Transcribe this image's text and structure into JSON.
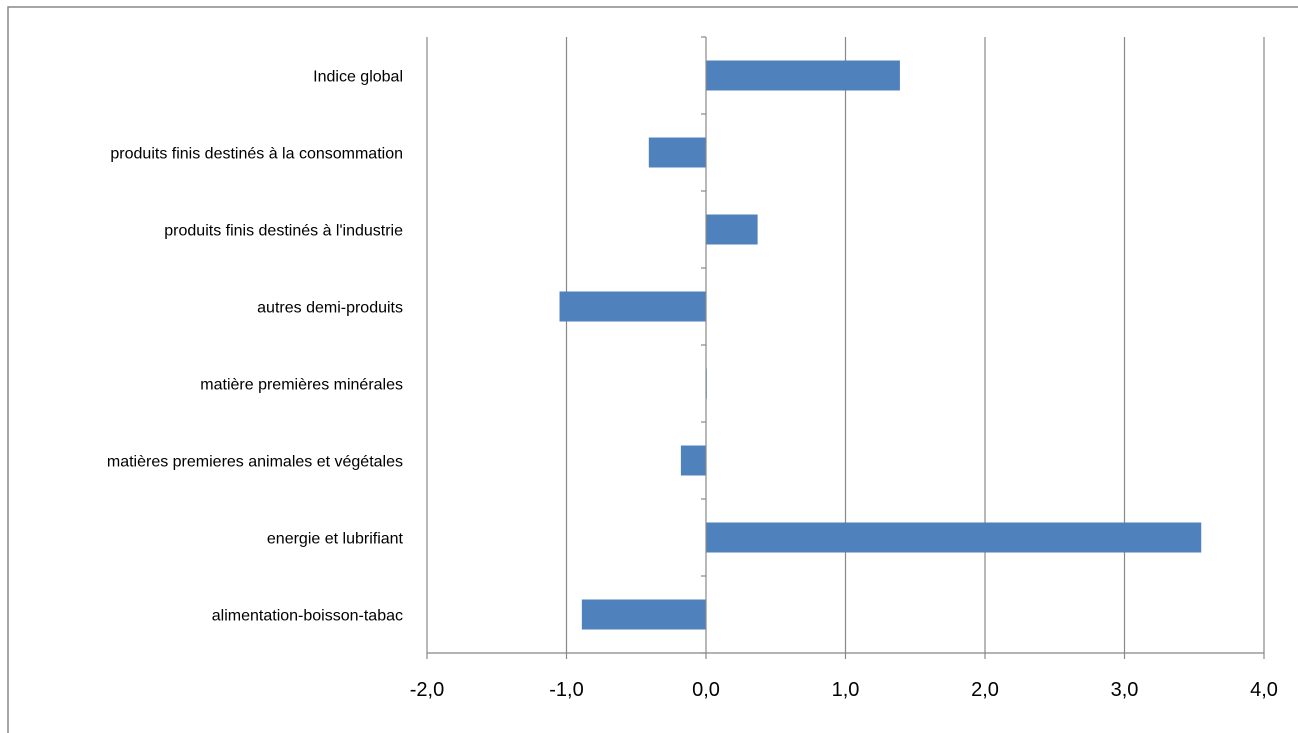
{
  "chart_data": {
    "type": "bar",
    "orientation": "horizontal",
    "title": "",
    "xlabel": "",
    "ylabel": "",
    "categories": [
      "alimentation-boisson-tabac",
      "energie et lubrifiant",
      "matières premieres animales et végétales",
      "matière premières minérales",
      "autres demi-produits",
      "produits finis destinés à l'industrie",
      "produits finis destinés à la consommation",
      "Indice global"
    ],
    "values": [
      -0.89,
      3.55,
      -0.18,
      0.0,
      -1.05,
      0.37,
      -0.41,
      1.39
    ],
    "xlim": [
      -2.0,
      4.0
    ],
    "x_ticks": [
      "-2,0",
      "-1,0",
      "0,0",
      "1,0",
      "2,0",
      "3,0",
      "4,0"
    ],
    "grid": "vertical",
    "legend": "none",
    "colors": {
      "bar": "#4F81BD",
      "grid": "#888888",
      "axis": "#888888",
      "border": "#888888"
    }
  }
}
